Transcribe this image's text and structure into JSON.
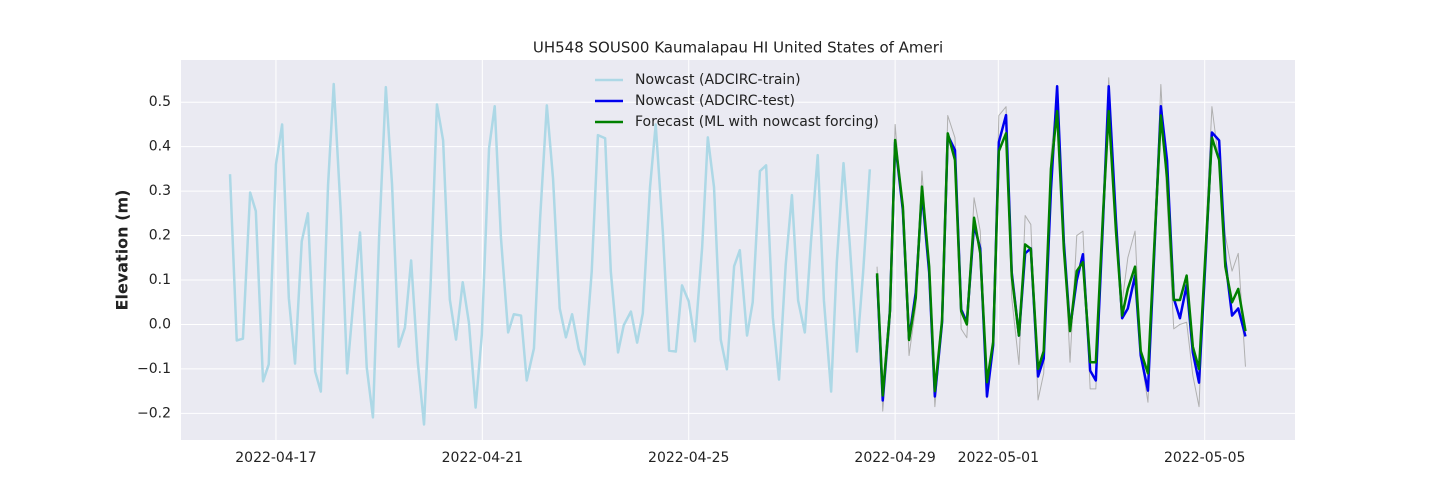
{
  "chart_data": {
    "type": "line",
    "title": "UH548 SOUS00 Kaumalapau HI United States of Ameri",
    "y_label": "Elevation (m)",
    "xlim": [
      0.16,
      21.75
    ],
    "xticks": [
      {
        "value": 2,
        "label": "2022-04-17"
      },
      {
        "value": 6,
        "label": "2022-04-21"
      },
      {
        "value": 10,
        "label": "2022-04-25"
      },
      {
        "value": 14,
        "label": "2022-04-29"
      },
      {
        "value": 16,
        "label": "2022-05-01"
      },
      {
        "value": 20,
        "label": "2022-05-05"
      }
    ],
    "ylim": [
      -0.26,
      0.595
    ],
    "yticks": [
      {
        "value": -0.2,
        "label": "−0.2"
      },
      {
        "value": -0.1,
        "label": "−0.1"
      },
      {
        "value": 0,
        "label": "0.0"
      },
      0.1,
      0.2,
      0.3,
      0.4,
      0.5
    ],
    "grid": true,
    "background": "#eaeaf2",
    "legend": "upper center",
    "series": [
      {
        "color": "#b0b0b0",
        "width": 1,
        "x": [
          13.65,
          13.76,
          13.9,
          14.0,
          14.15,
          14.27,
          14.4,
          14.52,
          14.66,
          14.77,
          14.91,
          15.02,
          15.16,
          15.28,
          15.39,
          15.53,
          15.65,
          15.78,
          15.9,
          16.01,
          16.15,
          16.26,
          16.4,
          16.52,
          16.63,
          16.77,
          16.88,
          17.02,
          17.14,
          17.27,
          17.39,
          17.52,
          17.64,
          17.78,
          17.89,
          18.03,
          18.14,
          18.28,
          18.4,
          18.51,
          18.65,
          18.76,
          18.9,
          19.02,
          19.15,
          19.27,
          19.4,
          19.52,
          19.65,
          19.77,
          19.89,
          20.02,
          20.14,
          20.28,
          20.4,
          20.53,
          20.65,
          20.79
        ],
        "values": [
          0.13,
          -0.195,
          0.0,
          0.45,
          0.24,
          -0.07,
          0.04,
          0.345,
          0.12,
          -0.185,
          0.0,
          0.47,
          0.42,
          -0.01,
          -0.03,
          0.285,
          0.21,
          -0.165,
          -0.03,
          0.47,
          0.49,
          0.06,
          -0.09,
          0.245,
          0.225,
          -0.17,
          -0.11,
          0.38,
          0.52,
          0.2,
          -0.085,
          0.2,
          0.21,
          -0.145,
          -0.145,
          0.24,
          0.555,
          0.21,
          0.05,
          0.15,
          0.21,
          -0.07,
          -0.175,
          0.17,
          0.54,
          0.28,
          -0.01,
          0.0,
          0.005,
          -0.115,
          -0.185,
          0.2,
          0.49,
          0.36,
          0.2,
          0.12,
          0.16,
          -0.095
        ]
      },
      {
        "name": "Nowcast (ADCIRC-train)",
        "color": "#add8e6",
        "width": 2.5,
        "x": [
          1.11,
          1.24,
          1.36,
          1.5,
          1.61,
          1.75,
          1.86,
          2.0,
          2.12,
          2.25,
          2.37,
          2.5,
          2.62,
          2.76,
          2.87,
          3.01,
          3.12,
          3.26,
          3.38,
          3.51,
          3.63,
          3.76,
          3.88,
          4.0,
          4.13,
          4.25,
          4.38,
          4.5,
          4.62,
          4.75,
          4.87,
          5.0,
          5.12,
          5.24,
          5.37,
          5.49,
          5.62,
          5.74,
          5.87,
          5.99,
          6.13,
          6.24,
          6.36,
          6.5,
          6.61,
          6.75,
          6.86,
          7.0,
          7.12,
          7.25,
          7.37,
          7.5,
          7.62,
          7.74,
          7.87,
          7.98,
          8.12,
          8.24,
          8.38,
          8.49,
          8.63,
          8.74,
          8.88,
          9.0,
          9.11,
          9.25,
          9.36,
          9.5,
          9.62,
          9.75,
          9.87,
          10.0,
          10.12,
          10.26,
          10.37,
          10.49,
          10.62,
          10.74,
          10.88,
          10.99,
          11.13,
          11.24,
          11.38,
          11.5,
          11.63,
          11.75,
          11.88,
          12.0,
          12.12,
          12.25,
          12.37,
          12.5,
          12.62,
          12.76,
          12.87,
          13.0,
          13.12,
          13.26,
          13.38,
          13.51
        ],
        "values": [
          0.338,
          -0.036,
          -0.032,
          0.297,
          0.255,
          -0.128,
          -0.09,
          0.36,
          0.45,
          0.059,
          -0.088,
          0.187,
          0.25,
          -0.106,
          -0.151,
          0.313,
          0.541,
          0.245,
          -0.11,
          0.065,
          0.207,
          -0.097,
          -0.209,
          0.198,
          0.534,
          0.315,
          -0.05,
          -0.007,
          0.144,
          -0.086,
          -0.225,
          0.097,
          0.495,
          0.414,
          0.056,
          -0.034,
          0.095,
          0.004,
          -0.187,
          -0.023,
          0.396,
          0.491,
          0.196,
          -0.018,
          0.023,
          0.02,
          -0.126,
          -0.054,
          0.239,
          0.493,
          0.329,
          0.036,
          -0.029,
          0.023,
          -0.056,
          -0.09,
          0.119,
          0.426,
          0.419,
          0.119,
          -0.063,
          -0.002,
          0.029,
          -0.041,
          0.025,
          0.309,
          0.45,
          0.205,
          -0.059,
          -0.061,
          0.088,
          0.052,
          -0.038,
          0.173,
          0.421,
          0.309,
          -0.034,
          -0.101,
          0.131,
          0.167,
          -0.025,
          0.05,
          0.345,
          0.358,
          0.016,
          -0.124,
          0.135,
          0.291,
          0.054,
          -0.018,
          0.187,
          0.381,
          0.054,
          -0.151,
          0.14,
          0.363,
          0.182,
          -0.061,
          0.117,
          0.349
        ]
      },
      {
        "name": "Nowcast (ADCIRC-test)",
        "color": "#0000ee",
        "width": 2.5,
        "x": [
          13.65,
          13.76,
          13.9,
          14.0,
          14.15,
          14.27,
          14.4,
          14.52,
          14.66,
          14.77,
          14.91,
          15.02,
          15.16,
          15.28,
          15.39,
          15.53,
          15.65,
          15.78,
          15.9,
          16.01,
          16.15,
          16.26,
          16.4,
          16.52,
          16.63,
          16.77,
          16.88,
          17.02,
          17.14,
          17.27,
          17.39,
          17.52,
          17.64,
          17.78,
          17.89,
          18.03,
          18.14,
          18.28,
          18.4,
          18.51,
          18.65,
          18.76,
          18.9,
          19.02,
          19.15,
          19.27,
          19.4,
          19.52,
          19.65,
          19.77,
          19.89,
          20.02,
          20.14,
          20.28,
          20.4,
          20.53,
          20.65,
          20.79
        ],
        "values": [
          0.11,
          -0.171,
          0.032,
          0.41,
          0.257,
          -0.032,
          0.072,
          0.297,
          0.117,
          -0.162,
          0.005,
          0.426,
          0.392,
          0.034,
          0.005,
          0.223,
          0.171,
          -0.162,
          -0.047,
          0.41,
          0.471,
          0.117,
          -0.025,
          0.16,
          0.171,
          -0.117,
          -0.077,
          0.302,
          0.536,
          0.185,
          -0.009,
          0.099,
          0.158,
          -0.104,
          -0.126,
          0.234,
          0.536,
          0.234,
          0.014,
          0.036,
          0.11,
          -0.07,
          -0.149,
          0.155,
          0.491,
          0.369,
          0.059,
          0.014,
          0.088,
          -0.063,
          -0.131,
          0.155,
          0.432,
          0.414,
          0.144,
          0.02,
          0.036,
          -0.027
        ]
      },
      {
        "name": "Forecast (ML with nowcast forcing)",
        "color": "#008000",
        "width": 2.5,
        "x": [
          13.65,
          13.76,
          13.9,
          14.0,
          14.15,
          14.27,
          14.4,
          14.52,
          14.66,
          14.77,
          14.91,
          15.02,
          15.16,
          15.28,
          15.39,
          15.53,
          15.65,
          15.78,
          15.9,
          16.01,
          16.15,
          16.26,
          16.4,
          16.52,
          16.63,
          16.77,
          16.88,
          17.02,
          17.14,
          17.27,
          17.39,
          17.52,
          17.64,
          17.78,
          17.89,
          18.03,
          18.14,
          18.28,
          18.4,
          18.51,
          18.65,
          18.76,
          18.9,
          19.02,
          19.15,
          19.27,
          19.4,
          19.52,
          19.65,
          19.77,
          19.89,
          20.02,
          20.14,
          20.28,
          20.4,
          20.53,
          20.65,
          20.79
        ],
        "values": [
          0.115,
          -0.16,
          0.03,
          0.415,
          0.265,
          -0.035,
          0.06,
          0.31,
          0.13,
          -0.15,
          0.01,
          0.43,
          0.37,
          0.03,
          0.0,
          0.24,
          0.16,
          -0.13,
          -0.04,
          0.39,
          0.43,
          0.11,
          -0.025,
          0.18,
          0.17,
          -0.1,
          -0.06,
          0.35,
          0.48,
          0.17,
          -0.015,
          0.12,
          0.14,
          -0.085,
          -0.085,
          0.25,
          0.48,
          0.21,
          0.02,
          0.08,
          0.13,
          -0.06,
          -0.11,
          0.17,
          0.47,
          0.33,
          0.055,
          0.055,
          0.11,
          -0.05,
          -0.1,
          0.17,
          0.42,
          0.37,
          0.13,
          0.05,
          0.08,
          -0.015
        ]
      }
    ]
  }
}
